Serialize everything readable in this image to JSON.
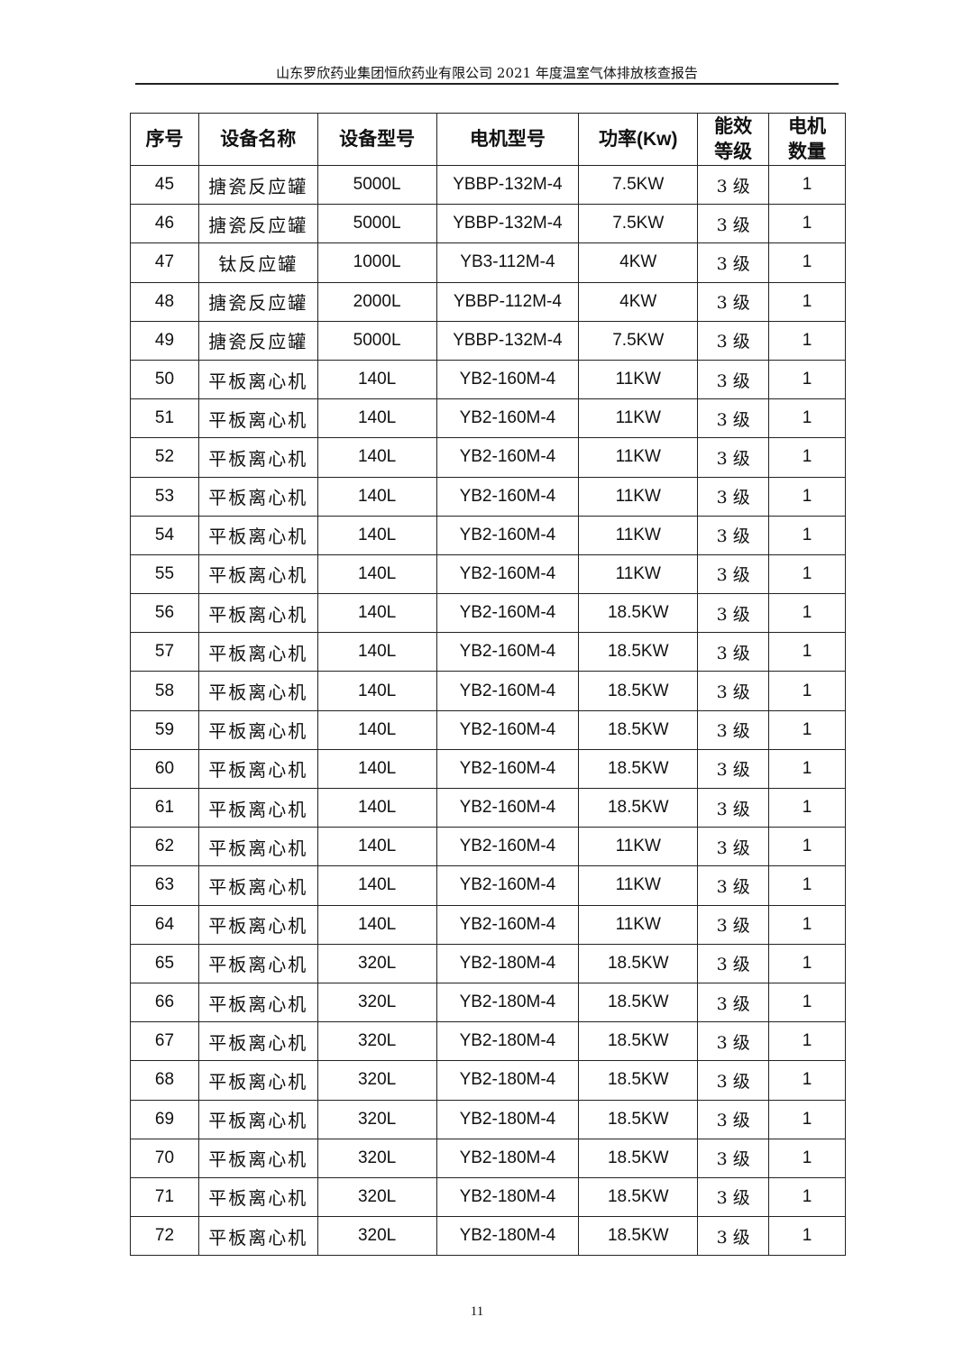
{
  "header": {
    "title": "山东罗欣药业集团恒欣药业有限公司 2021 年度温室气体排放核查报告"
  },
  "table": {
    "columns": [
      "序号",
      "设备名称",
      "设备型号",
      "电机型号",
      "功率(Kw)",
      "能效\n等级",
      "电机\n数量"
    ],
    "rows": [
      [
        "45",
        "搪瓷反应罐",
        "5000L",
        "YBBP-132M-4",
        "7.5KW",
        "3 级",
        "1"
      ],
      [
        "46",
        "搪瓷反应罐",
        "5000L",
        "YBBP-132M-4",
        "7.5KW",
        "3 级",
        "1"
      ],
      [
        "47",
        "钛反应罐",
        "1000L",
        "YB3-112M-4",
        "4KW",
        "3 级",
        "1"
      ],
      [
        "48",
        "搪瓷反应罐",
        "2000L",
        "YBBP-112M-4",
        "4KW",
        "3 级",
        "1"
      ],
      [
        "49",
        "搪瓷反应罐",
        "5000L",
        "YBBP-132M-4",
        "7.5KW",
        "3 级",
        "1"
      ],
      [
        "50",
        "平板离心机",
        "140L",
        "YB2-160M-4",
        "11KW",
        "3 级",
        "1"
      ],
      [
        "51",
        "平板离心机",
        "140L",
        "YB2-160M-4",
        "11KW",
        "3 级",
        "1"
      ],
      [
        "52",
        "平板离心机",
        "140L",
        "YB2-160M-4",
        "11KW",
        "3 级",
        "1"
      ],
      [
        "53",
        "平板离心机",
        "140L",
        "YB2-160M-4",
        "11KW",
        "3 级",
        "1"
      ],
      [
        "54",
        "平板离心机",
        "140L",
        "YB2-160M-4",
        "11KW",
        "3 级",
        "1"
      ],
      [
        "55",
        "平板离心机",
        "140L",
        "YB2-160M-4",
        "11KW",
        "3 级",
        "1"
      ],
      [
        "56",
        "平板离心机",
        "140L",
        "YB2-160M-4",
        "18.5KW",
        "3 级",
        "1"
      ],
      [
        "57",
        "平板离心机",
        "140L",
        "YB2-160M-4",
        "18.5KW",
        "3 级",
        "1"
      ],
      [
        "58",
        "平板离心机",
        "140L",
        "YB2-160M-4",
        "18.5KW",
        "3 级",
        "1"
      ],
      [
        "59",
        "平板离心机",
        "140L",
        "YB2-160M-4",
        "18.5KW",
        "3 级",
        "1"
      ],
      [
        "60",
        "平板离心机",
        "140L",
        "YB2-160M-4",
        "18.5KW",
        "3 级",
        "1"
      ],
      [
        "61",
        "平板离心机",
        "140L",
        "YB2-160M-4",
        "18.5KW",
        "3 级",
        "1"
      ],
      [
        "62",
        "平板离心机",
        "140L",
        "YB2-160M-4",
        "11KW",
        "3 级",
        "1"
      ],
      [
        "63",
        "平板离心机",
        "140L",
        "YB2-160M-4",
        "11KW",
        "3 级",
        "1"
      ],
      [
        "64",
        "平板离心机",
        "140L",
        "YB2-160M-4",
        "11KW",
        "3 级",
        "1"
      ],
      [
        "65",
        "平板离心机",
        "320L",
        "YB2-180M-4",
        "18.5KW",
        "3 级",
        "1"
      ],
      [
        "66",
        "平板离心机",
        "320L",
        "YB2-180M-4",
        "18.5KW",
        "3 级",
        "1"
      ],
      [
        "67",
        "平板离心机",
        "320L",
        "YB2-180M-4",
        "18.5KW",
        "3 级",
        "1"
      ],
      [
        "68",
        "平板离心机",
        "320L",
        "YB2-180M-4",
        "18.5KW",
        "3 级",
        "1"
      ],
      [
        "69",
        "平板离心机",
        "320L",
        "YB2-180M-4",
        "18.5KW",
        "3 级",
        "1"
      ],
      [
        "70",
        "平板离心机",
        "320L",
        "YB2-180M-4",
        "18.5KW",
        "3 级",
        "1"
      ],
      [
        "71",
        "平板离心机",
        "320L",
        "YB2-180M-4",
        "18.5KW",
        "3 级",
        "1"
      ],
      [
        "72",
        "平板离心机",
        "320L",
        "YB2-180M-4",
        "18.5KW",
        "3 级",
        "1"
      ]
    ]
  },
  "footer": {
    "page_number": "11"
  }
}
